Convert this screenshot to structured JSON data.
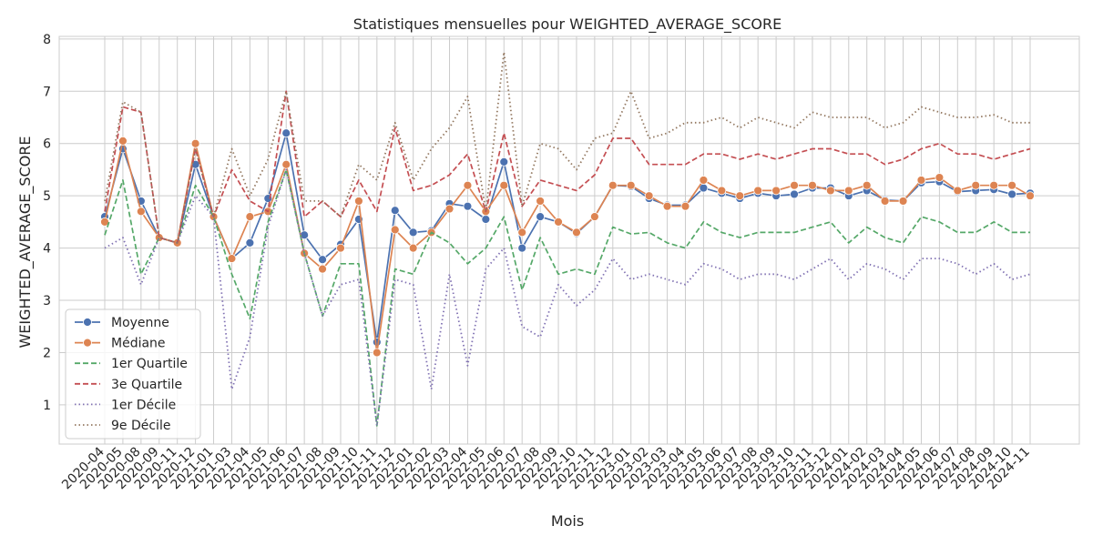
{
  "chart_data": {
    "type": "line",
    "title": "Statistiques mensuelles pour WEIGHTED_AVERAGE_SCORE",
    "xlabel": "Mois",
    "ylabel": "WEIGHTED_AVERAGE_SCORE",
    "ylim": [
      0.25,
      8.05
    ],
    "yticks": [
      1,
      2,
      3,
      4,
      5,
      6,
      7,
      8
    ],
    "grid": true,
    "legend_position": "lower-left",
    "categories": [
      "2020-04",
      "2020-05",
      "2020-08",
      "2020-09",
      "2020-11",
      "2020-12",
      "2021-01",
      "2021-03",
      "2021-04",
      "2021-05",
      "2021-06",
      "2021-07",
      "2021-08",
      "2021-09",
      "2021-10",
      "2021-11",
      "2021-12",
      "2022-01",
      "2022-02",
      "2022-03",
      "2022-04",
      "2022-05",
      "2022-06",
      "2022-07",
      "2022-08",
      "2022-09",
      "2022-10",
      "2022-11",
      "2022-12",
      "2023-01",
      "2023-02",
      "2023-03",
      "2023-04",
      "2023-05",
      "2023-06",
      "2023-07",
      "2023-08",
      "2023-09",
      "2023-10",
      "2023-11",
      "2023-12",
      "2024-01",
      "2024-02",
      "2024-03",
      "2024-04",
      "2024-05",
      "2024-06",
      "2024-07",
      "2024-08",
      "2024-09",
      "2024-10",
      "2024-11"
    ],
    "series": [
      {
        "name": "Moyenne",
        "color": "#4c72b0",
        "style": "solid-marker",
        "values": [
          4.6,
          5.9,
          4.9,
          4.2,
          4.1,
          5.6,
          4.6,
          3.8,
          4.1,
          4.95,
          6.2,
          4.25,
          3.78,
          4.07,
          4.55,
          2.2,
          4.72,
          4.3,
          4.33,
          4.85,
          4.8,
          4.55,
          5.65,
          4.0,
          4.6,
          4.5,
          4.28,
          4.6,
          5.2,
          5.18,
          4.95,
          4.82,
          4.82,
          5.15,
          5.05,
          4.95,
          5.05,
          5.0,
          5.03,
          5.15,
          5.15,
          5.0,
          5.1,
          4.92,
          4.9,
          5.25,
          5.27,
          5.08,
          5.1,
          5.12,
          5.03,
          5.05
        ]
      },
      {
        "name": "Médiane",
        "color": "#dd8452",
        "style": "solid-marker",
        "values": [
          4.5,
          6.05,
          4.7,
          4.2,
          4.1,
          6.0,
          4.6,
          3.8,
          4.6,
          4.7,
          5.6,
          3.9,
          3.6,
          4.0,
          4.9,
          2.0,
          4.35,
          4.0,
          4.3,
          4.75,
          5.2,
          4.7,
          5.2,
          4.3,
          4.9,
          4.5,
          4.3,
          4.6,
          5.2,
          5.2,
          5.0,
          4.8,
          4.8,
          5.3,
          5.1,
          5.0,
          5.1,
          5.1,
          5.2,
          5.2,
          5.1,
          5.1,
          5.2,
          4.9,
          4.9,
          5.3,
          5.35,
          5.1,
          5.2,
          5.2,
          5.2,
          5.0
        ]
      },
      {
        "name": "1er Quartile",
        "color": "#55a868",
        "style": "dashed",
        "values": [
          4.25,
          5.3,
          3.5,
          4.2,
          4.1,
          5.2,
          4.6,
          3.5,
          2.65,
          4.5,
          5.5,
          3.9,
          2.7,
          3.7,
          3.7,
          0.6,
          3.6,
          3.5,
          4.3,
          4.1,
          3.7,
          4.0,
          4.6,
          3.2,
          4.2,
          3.5,
          3.6,
          3.5,
          4.4,
          4.27,
          4.3,
          4.1,
          4.0,
          4.5,
          4.3,
          4.2,
          4.3,
          4.3,
          4.3,
          4.4,
          4.5,
          4.1,
          4.4,
          4.2,
          4.1,
          4.6,
          4.5,
          4.3,
          4.3,
          4.5,
          4.3,
          4.3
        ]
      },
      {
        "name": "3e Quartile",
        "color": "#c44e52",
        "style": "dashed",
        "values": [
          4.7,
          6.7,
          6.6,
          4.2,
          4.1,
          5.9,
          4.6,
          5.5,
          4.9,
          4.7,
          7.0,
          4.6,
          4.9,
          4.6,
          5.3,
          4.7,
          6.3,
          5.1,
          5.2,
          5.4,
          5.8,
          4.7,
          6.2,
          4.8,
          5.3,
          5.2,
          5.1,
          5.4,
          6.1,
          6.1,
          5.6,
          5.6,
          5.6,
          5.8,
          5.8,
          5.7,
          5.8,
          5.7,
          5.8,
          5.9,
          5.9,
          5.8,
          5.8,
          5.6,
          5.7,
          5.9,
          6.0,
          5.8,
          5.8,
          5.7,
          5.8,
          5.9
        ]
      },
      {
        "name": "1er Décile",
        "color": "#8172b3",
        "style": "dotted",
        "values": [
          4.0,
          4.2,
          3.3,
          4.2,
          4.1,
          5.0,
          4.6,
          1.3,
          2.3,
          4.4,
          5.5,
          3.9,
          2.7,
          3.3,
          3.4,
          0.6,
          3.4,
          3.3,
          1.3,
          3.5,
          1.75,
          3.6,
          4.0,
          2.5,
          2.3,
          3.3,
          2.9,
          3.2,
          3.8,
          3.4,
          3.5,
          3.4,
          3.3,
          3.7,
          3.6,
          3.4,
          3.5,
          3.5,
          3.4,
          3.6,
          3.8,
          3.4,
          3.7,
          3.6,
          3.4,
          3.8,
          3.8,
          3.7,
          3.5,
          3.7,
          3.4,
          3.5
        ]
      },
      {
        "name": "9e Décile",
        "color": "#937860",
        "style": "dotted",
        "values": [
          4.9,
          6.8,
          6.6,
          4.2,
          4.1,
          5.9,
          4.6,
          5.9,
          5.0,
          5.7,
          7.0,
          4.9,
          4.9,
          4.6,
          5.6,
          5.3,
          6.4,
          5.3,
          5.9,
          6.3,
          6.9,
          4.7,
          7.75,
          4.8,
          6.0,
          5.9,
          5.5,
          6.1,
          6.2,
          7.0,
          6.1,
          6.2,
          6.4,
          6.4,
          6.5,
          6.3,
          6.5,
          6.4,
          6.3,
          6.6,
          6.5,
          6.5,
          6.5,
          6.3,
          6.4,
          6.7,
          6.6,
          6.5,
          6.5,
          6.55,
          6.4,
          6.4
        ]
      }
    ]
  }
}
